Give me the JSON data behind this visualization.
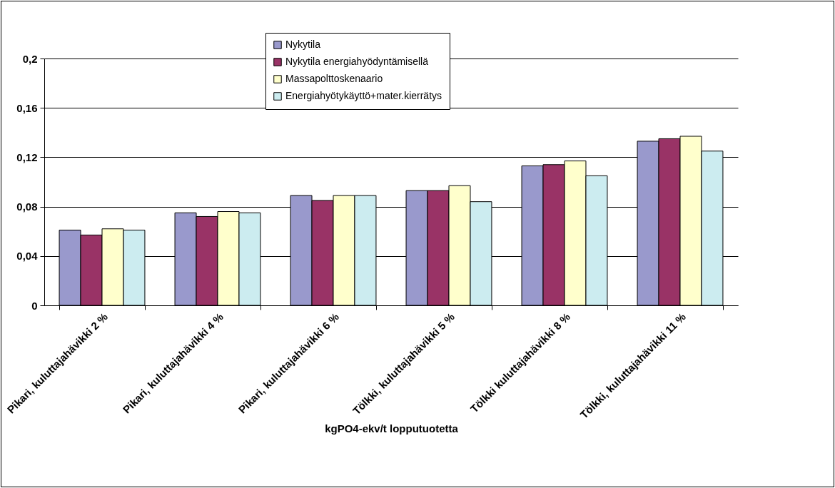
{
  "chart_data": {
    "type": "bar",
    "xlabel": "kgPO4-ekv/t lopputuotetta",
    "categories": [
      "Pikari, kuluttajahävikki 2 %",
      "Pikari, kuluttajahävikki 4 %",
      "Pikari, kuluttajahävikki 6 %",
      "Tölkki, kuluttajahävikki 5 %",
      "Tölkki kuluttajahävikki 8 %",
      "Tölkki, kuluttajahävikki 11 %"
    ],
    "series": [
      {
        "name": "Nykytila",
        "color": "#9999cc",
        "values": [
          0.061,
          0.075,
          0.089,
          0.093,
          0.113,
          0.133
        ]
      },
      {
        "name": "Nykytila energiahyödyntämisellä",
        "color": "#993366",
        "values": [
          0.057,
          0.072,
          0.085,
          0.093,
          0.114,
          0.135
        ]
      },
      {
        "name": "Massapolttoskenaario",
        "color": "#ffffcc",
        "values": [
          0.062,
          0.076,
          0.089,
          0.097,
          0.117,
          0.137
        ]
      },
      {
        "name": "Energiahyötykäyttö+mater.kierrätys",
        "color": "#ccecf0",
        "values": [
          0.061,
          0.075,
          0.089,
          0.084,
          0.105,
          0.125
        ]
      }
    ],
    "ylim": [
      0,
      0.2
    ],
    "yticks": [
      {
        "value": 0,
        "label": "0"
      },
      {
        "value": 0.04,
        "label": "0,04"
      },
      {
        "value": 0.08,
        "label": "0,08"
      },
      {
        "value": 0.12,
        "label": "0,12"
      },
      {
        "value": 0.16,
        "label": "0,16"
      },
      {
        "value": 0.2,
        "label": "0,2"
      }
    ],
    "grid": "y",
    "legend": "top right"
  }
}
